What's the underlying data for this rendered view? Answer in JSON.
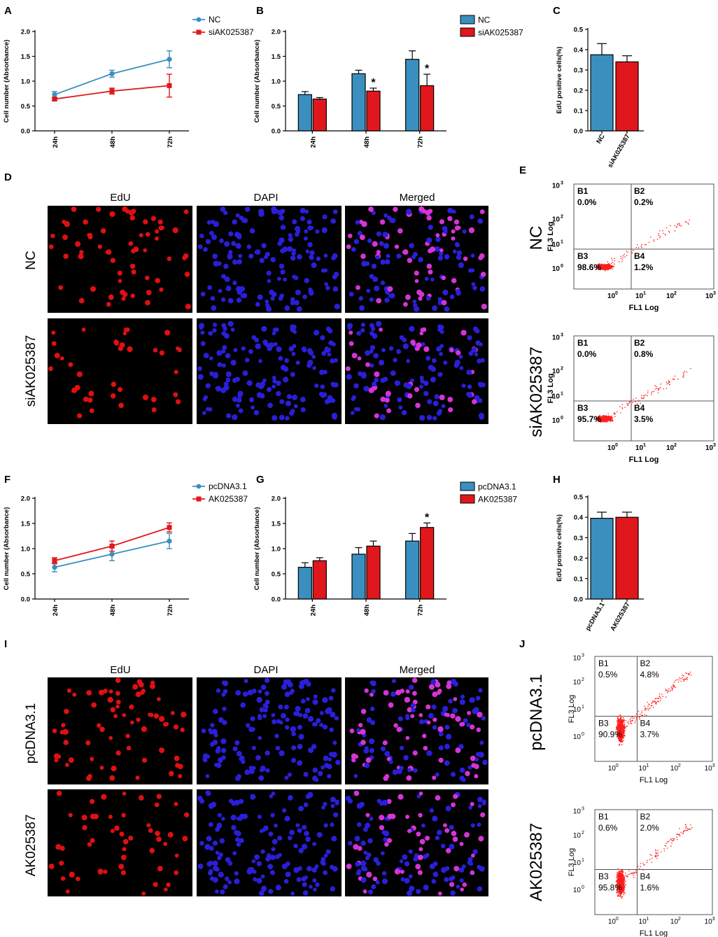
{
  "panel_letters": [
    "A",
    "B",
    "C",
    "D",
    "E",
    "F",
    "G",
    "H",
    "I",
    "J"
  ],
  "colors": {
    "blue": "#3a8fbf",
    "red": "#e0171b",
    "dot": "#ff1f1f"
  },
  "chart_data": [
    {
      "panel": "A",
      "type": "line",
      "ylabel": "Cell number (Absorbance)",
      "categories": [
        "24h",
        "48h",
        "72h"
      ],
      "ylim": [
        0,
        2.0
      ],
      "yticks": [
        "0.0",
        "0.5",
        "1.0",
        "1.5",
        "2.0"
      ],
      "series": [
        {
          "name": "NC",
          "values": [
            0.73,
            1.15,
            1.44
          ],
          "err": [
            0.06,
            0.07,
            0.17
          ]
        },
        {
          "name": "siAK025387",
          "values": [
            0.64,
            0.8,
            0.91
          ],
          "err": [
            0.03,
            0.06,
            0.23
          ]
        }
      ]
    },
    {
      "panel": "B",
      "type": "bar",
      "ylabel": "Cell number (Absorbance)",
      "categories": [
        "24h",
        "48h",
        "72h"
      ],
      "ylim": [
        0,
        2.0
      ],
      "yticks": [
        "0.0",
        "0.5",
        "1.0",
        "1.5",
        "2.0"
      ],
      "series": [
        {
          "name": "NC",
          "values": [
            0.73,
            1.15,
            1.44
          ],
          "err": [
            0.06,
            0.07,
            0.17
          ]
        },
        {
          "name": "siAK025387",
          "values": [
            0.64,
            0.8,
            0.91
          ],
          "err": [
            0.03,
            0.06,
            0.23
          ]
        }
      ],
      "significance": [
        "",
        "*",
        "*"
      ]
    },
    {
      "panel": "C",
      "type": "bar",
      "ylabel": "EdU positive cells(%)",
      "categories": [
        "NC",
        "siAK025387"
      ],
      "ylim": [
        0,
        0.5
      ],
      "yticks": [
        "0.0",
        "0.1",
        "0.2",
        "0.3",
        "0.4",
        "0.5"
      ],
      "values": [
        0.375,
        0.34
      ],
      "err": [
        0.055,
        0.03
      ]
    },
    {
      "panel": "F",
      "type": "line",
      "ylabel": "Cell number (Absorbance)",
      "categories": [
        "24h",
        "48h",
        "72h"
      ],
      "ylim": [
        0,
        2.0
      ],
      "yticks": [
        "0.0",
        "0.5",
        "1.0",
        "1.5",
        "2.0"
      ],
      "series": [
        {
          "name": "pcDNA3.1",
          "values": [
            0.63,
            0.89,
            1.15
          ],
          "err": [
            0.09,
            0.13,
            0.15
          ]
        },
        {
          "name": "AK025387",
          "values": [
            0.76,
            1.05,
            1.42
          ],
          "err": [
            0.06,
            0.1,
            0.09
          ]
        }
      ]
    },
    {
      "panel": "G",
      "type": "bar",
      "ylabel": "Cell number (Absorbance)",
      "categories": [
        "24h",
        "48h",
        "72h"
      ],
      "ylim": [
        0,
        2.0
      ],
      "yticks": [
        "0.0",
        "0.5",
        "1.0",
        "1.5",
        "2.0"
      ],
      "series": [
        {
          "name": "pcDNA3.1",
          "values": [
            0.63,
            0.89,
            1.15
          ],
          "err": [
            0.09,
            0.13,
            0.15
          ]
        },
        {
          "name": "AK025387",
          "values": [
            0.76,
            1.05,
            1.42
          ],
          "err": [
            0.06,
            0.1,
            0.09
          ]
        }
      ],
      "significance": [
        "",
        "",
        "*"
      ]
    },
    {
      "panel": "H",
      "type": "bar",
      "ylabel": "EdU positive cells(%)",
      "categories": [
        "pcDNA3.1",
        "AK025387"
      ],
      "ylim": [
        0,
        0.5
      ],
      "yticks": [
        "0.0",
        "0.1",
        "0.2",
        "0.3",
        "0.4",
        "0.5"
      ],
      "values": [
        0.395,
        0.4
      ],
      "err": [
        0.03,
        0.025
      ]
    }
  ],
  "microscopy": {
    "titles": [
      "EdU",
      "DAPI",
      "Merged"
    ],
    "rows_D": [
      "NC",
      "siAK025387"
    ],
    "rows_I": [
      "pcDNA3.1",
      "AK025387"
    ]
  },
  "flow": {
    "xlabel": "FL1 Log",
    "ylabel": "FL3 Log",
    "ticks": [
      "10",
      "0",
      "10",
      "1",
      "10",
      "2",
      "10",
      "3"
    ],
    "quadrant_names": [
      "B1",
      "B2",
      "B3",
      "B4"
    ],
    "E": [
      {
        "label": "NC",
        "values": [
          "0.0%",
          "0.2%",
          "98.6%",
          "1.2%"
        ]
      },
      {
        "label": "siAK025387",
        "values": [
          "0.0%",
          "0.8%",
          "95.7%",
          "3.5%"
        ]
      }
    ],
    "J": [
      {
        "label": "pcDNA3.1",
        "values": [
          "0.5%",
          "4.8%",
          "90.9%",
          "3.7%"
        ]
      },
      {
        "label": "AK025387",
        "values": [
          "0.6%",
          "2.0%",
          "95.8%",
          "1.6%"
        ]
      }
    ]
  }
}
